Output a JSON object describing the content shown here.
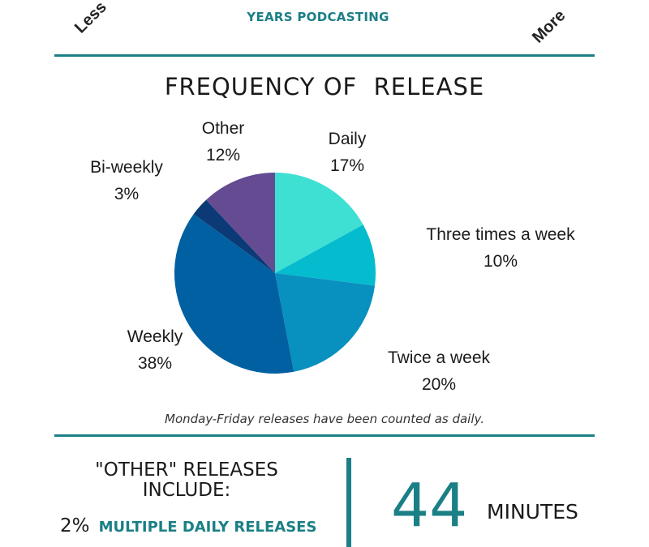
{
  "header": {
    "corner_left": "Less",
    "corner_right": "More",
    "caption": "YEARS PODCASTING"
  },
  "chart_data": {
    "type": "pie",
    "title": "FREQUENCY OF  RELEASE",
    "slices": [
      {
        "label": "Daily",
        "value": 17,
        "display": "17%",
        "color": "#3ee0d3"
      },
      {
        "label": "Three times a week",
        "value": 10,
        "display": "10%",
        "color": "#05bccf"
      },
      {
        "label": "Twice a week",
        "value": 20,
        "display": "20%",
        "color": "#0890bf"
      },
      {
        "label": "Weekly",
        "value": 38,
        "display": "38%",
        "color": "#0160a1"
      },
      {
        "label": "Bi-weekly",
        "value": 3,
        "display": "3%",
        "color": "#0c3a77"
      },
      {
        "label": "Other",
        "value": 12,
        "display": "12%",
        "color": "#654b92"
      }
    ],
    "start": "12 o'clock",
    "direction": "clockwise",
    "footnote": "Monday-Friday releases have been counted as daily."
  },
  "other_releases": {
    "heading_line1": "\"OTHER\" RELEASES",
    "heading_line2": "INCLUDE:",
    "item_pct": "2%",
    "item_text": "MULTIPLE DAILY RELEASES"
  },
  "stat": {
    "value": "44",
    "unit": "MINUTES"
  },
  "colors": {
    "accent": "#1b7f86",
    "text": "#1a1a1a"
  }
}
